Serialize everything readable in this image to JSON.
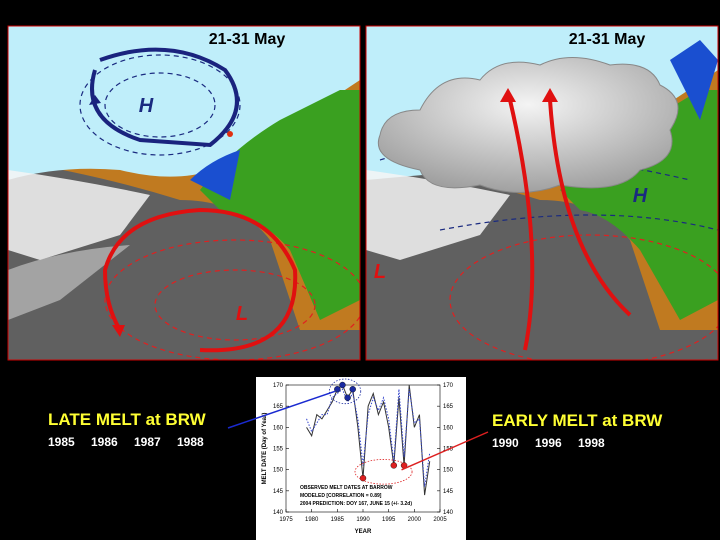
{
  "maps": [
    {
      "date": "21-31 May",
      "high": "H",
      "low": "L"
    },
    {
      "date": "21-31 May",
      "high": "H",
      "low": "L"
    }
  ],
  "late_melt": {
    "title": "LATE MELT at BRW",
    "years": [
      "1985",
      "1986",
      "1987",
      "1988"
    ]
  },
  "early_melt": {
    "title": "EARLY MELT at BRW",
    "years": [
      "1990",
      "1996",
      "1998"
    ]
  },
  "chart_data": {
    "type": "line",
    "x_label": "YEAR",
    "y_label": "MELT DATE (Day of Year)",
    "notes": [
      "OBSERVED MELT DATES AT BARROW",
      "MODELED  [CORRELATION = 0.89]",
      "2004 PREDICTION: DOY 167, JUNE 15 (+/- 3.2d)"
    ],
    "x": [
      1979,
      1980,
      1981,
      1982,
      1983,
      1984,
      1985,
      1986,
      1987,
      1988,
      1989,
      1990,
      1991,
      1992,
      1993,
      1994,
      1995,
      1996,
      1997,
      1998,
      1999,
      2000,
      2001,
      2002,
      2003
    ],
    "series": [
      {
        "name": "OBSERVED",
        "color": "#333333",
        "values": [
          160,
          158,
          163,
          162,
          164,
          166,
          169,
          170,
          167,
          169,
          160,
          148,
          165,
          168,
          163,
          166,
          160,
          151,
          167,
          151,
          170,
          160,
          163,
          144,
          152
        ]
      },
      {
        "name": "MODELED",
        "color": "#3344cc",
        "values": [
          162,
          159,
          161,
          163,
          163,
          167,
          168,
          169,
          166,
          168,
          162,
          151,
          163,
          167,
          164,
          167,
          162,
          152,
          169,
          153,
          169,
          161,
          162,
          146,
          154
        ]
      }
    ],
    "xlim": [
      1975,
      2005
    ],
    "xticks": [
      1975,
      1980,
      1985,
      1990,
      1995,
      2000,
      2005
    ],
    "ylim": [
      140,
      170
    ],
    "yticks": [
      140,
      145,
      150,
      155,
      160,
      165,
      170
    ]
  }
}
